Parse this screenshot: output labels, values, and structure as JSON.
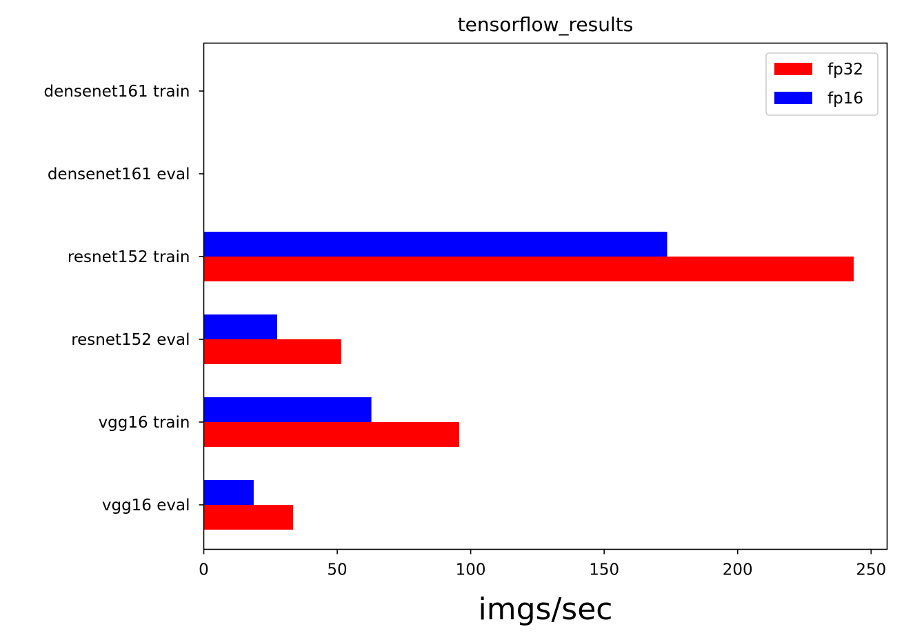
{
  "chart_data": {
    "type": "bar",
    "orientation": "horizontal",
    "title": "tensorflow_results",
    "xlabel": "imgs/sec",
    "ylabel": "",
    "categories": [
      "vgg16 eval",
      "vgg16 train",
      "resnet152 eval",
      "resnet152 train",
      "densenet161 eval",
      "densenet161 train"
    ],
    "series": [
      {
        "name": "fp32",
        "color": "#ff0000",
        "values": [
          33.5,
          95.7,
          51.5,
          243.5,
          null,
          null
        ]
      },
      {
        "name": "fp16",
        "color": "#0000ff",
        "values": [
          18.7,
          62.8,
          27.5,
          173.6,
          null,
          null
        ]
      }
    ],
    "xlim": [
      0,
      256
    ],
    "xticks": [
      0,
      50,
      100,
      150,
      200,
      250
    ],
    "grid": false,
    "legend_position": "top-right"
  }
}
